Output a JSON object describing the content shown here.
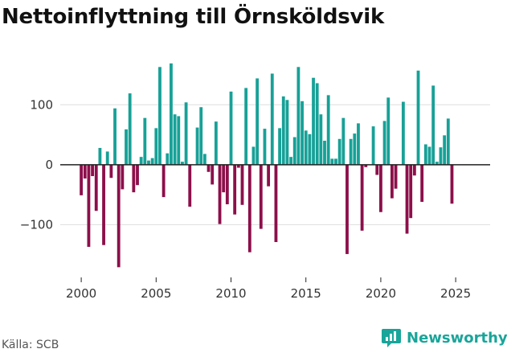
{
  "title": "Nettoinflyttning till Örnsköldsvik",
  "source": "Källa: SCB",
  "brand": "Newsworthy",
  "colors": {
    "positive": "#17a197",
    "negative": "#8c0f4a",
    "grid": "#dddddd",
    "axis": "#222222",
    "brand": "#19a59a"
  },
  "chart_data": {
    "type": "bar",
    "title": "Nettoinflyttning till Örnsköldsvik",
    "frequency": "quarterly",
    "x_start": 2000,
    "x_step": 0.25,
    "xlim": [
      1998.6,
      2027.3
    ],
    "ylim": [
      -188,
      205
    ],
    "xticks": [
      2000,
      2005,
      2010,
      2015,
      2020,
      2025
    ],
    "yticks": [
      -100,
      0,
      100
    ],
    "ytick_labels": [
      "−100",
      "0",
      "100"
    ],
    "values": [
      -51,
      -23,
      -137,
      -19,
      -77,
      28,
      -134,
      22,
      -22,
      94,
      -171,
      -41,
      59,
      119,
      -46,
      -34,
      13,
      78,
      7,
      11,
      61,
      163,
      -54,
      19,
      169,
      84,
      81,
      5,
      104,
      -70,
      0,
      62,
      96,
      18,
      -12,
      -33,
      72,
      -99,
      -46,
      -66,
      122,
      -83,
      -5,
      -67,
      128,
      -146,
      30,
      144,
      -107,
      60,
      -36,
      152,
      -129,
      61,
      114,
      108,
      13,
      46,
      163,
      106,
      57,
      51,
      145,
      136,
      84,
      40,
      116,
      10,
      10,
      43,
      78,
      -149,
      43,
      52,
      69,
      -110,
      -4,
      0,
      64,
      -17,
      -79,
      73,
      112,
      -56,
      -40,
      0,
      105,
      -115,
      -89,
      -18,
      157,
      -62,
      34,
      30,
      132,
      5,
      29,
      49,
      77,
      -65
    ]
  }
}
